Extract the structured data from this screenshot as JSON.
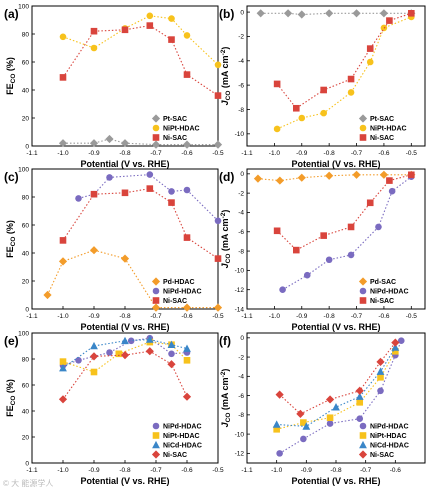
{
  "colors": {
    "gray": "#9a9a9a",
    "yellow": "#f7c21c",
    "red": "#d9443c",
    "orange": "#f39c2a",
    "purple": "#7a6bc0",
    "blue": "#3a86c8"
  },
  "watermark": "© 大 能源学人",
  "chart_data": [
    {
      "panel": "(a)",
      "type": "line",
      "xlabel": "Potential (V vs. RHE)",
      "ylabel": "FE_CO (%)",
      "xlim": [
        -1.1,
        -0.5
      ],
      "ylim": [
        0,
        100
      ],
      "xticks": [
        -1.1,
        -1.0,
        -0.9,
        -0.8,
        -0.7,
        -0.6,
        -0.5
      ],
      "yticks": [
        0,
        20,
        40,
        60,
        80,
        100
      ],
      "legend_position": "bottom-right",
      "series": [
        {
          "name": "Pt-SAC",
          "marker": "diamond",
          "color": "gray",
          "x": [
            -1.0,
            -0.9,
            -0.85,
            -0.8,
            -0.7,
            -0.6,
            -0.5
          ],
          "y": [
            2,
            2,
            5,
            2,
            1,
            1,
            1
          ]
        },
        {
          "name": "NiPt-HDAC",
          "marker": "circle",
          "color": "yellow",
          "x": [
            -1.0,
            -0.9,
            -0.8,
            -0.72,
            -0.65,
            -0.6,
            -0.5
          ],
          "y": [
            78,
            70,
            84,
            93,
            91,
            79,
            58
          ]
        },
        {
          "name": "Ni-SAC",
          "marker": "square",
          "color": "red",
          "x": [
            -1.0,
            -0.9,
            -0.8,
            -0.72,
            -0.65,
            -0.6,
            -0.5
          ],
          "y": [
            49,
            82,
            83,
            86,
            76,
            51,
            36
          ]
        }
      ]
    },
    {
      "panel": "(b)",
      "type": "line",
      "xlabel": "Potential (V vs. RHE)",
      "ylabel": "J_CO (mA cm^-2)",
      "xlim": [
        -1.1,
        -0.45
      ],
      "ylim": [
        -11,
        0.5
      ],
      "xticks": [
        -1.1,
        -1.0,
        -0.9,
        -0.8,
        -0.7,
        -0.6,
        -0.5
      ],
      "yticks": [
        0,
        -2,
        -4,
        -6,
        -8,
        -10
      ],
      "legend_position": "bottom-right",
      "series": [
        {
          "name": "Pt-SAC",
          "marker": "diamond",
          "color": "gray",
          "x": [
            -1.05,
            -0.95,
            -0.9,
            -0.8,
            -0.7,
            -0.6,
            -0.5
          ],
          "y": [
            -0.1,
            -0.1,
            -0.2,
            -0.1,
            -0.1,
            -0.1,
            -0.1
          ]
        },
        {
          "name": "NiPt-HDAC",
          "marker": "circle",
          "color": "yellow",
          "x": [
            -0.99,
            -0.9,
            -0.82,
            -0.72,
            -0.65,
            -0.6,
            -0.5
          ],
          "y": [
            -9.6,
            -8.7,
            -8.3,
            -6.6,
            -4.1,
            -1.3,
            -0.4
          ]
        },
        {
          "name": "Ni-SAC",
          "marker": "square",
          "color": "red",
          "x": [
            -0.99,
            -0.92,
            -0.82,
            -0.72,
            -0.65,
            -0.58,
            -0.5
          ],
          "y": [
            -5.9,
            -7.9,
            -6.4,
            -5.5,
            -3.0,
            -0.7,
            -0.1
          ]
        }
      ]
    },
    {
      "panel": "(c)",
      "type": "line",
      "xlabel": "Potential (V vs. RHE)",
      "ylabel": "FE_CO (%)",
      "xlim": [
        -1.1,
        -0.5
      ],
      "ylim": [
        0,
        100
      ],
      "xticks": [
        -1.1,
        -1.0,
        -0.9,
        -0.8,
        -0.7,
        -0.6,
        -0.5
      ],
      "yticks": [
        0,
        20,
        40,
        60,
        80,
        100
      ],
      "legend_position": "bottom-right",
      "series": [
        {
          "name": "Pd-HDAC",
          "marker": "diamond",
          "color": "orange",
          "x": [
            -1.05,
            -1.0,
            -0.9,
            -0.8,
            -0.7,
            -0.6,
            -0.5
          ],
          "y": [
            10,
            34,
            42,
            36,
            1,
            1,
            1
          ]
        },
        {
          "name": "NiPd-HDAC",
          "marker": "circle",
          "color": "purple",
          "x": [
            -0.95,
            -0.9,
            -0.85,
            -0.72,
            -0.65,
            -0.6,
            -0.5
          ],
          "y": [
            79,
            82,
            94,
            96,
            84,
            85,
            63
          ]
        },
        {
          "name": "Ni-SAC",
          "marker": "square",
          "color": "red",
          "x": [
            -1.0,
            -0.9,
            -0.8,
            -0.72,
            -0.65,
            -0.6,
            -0.5
          ],
          "y": [
            49,
            82,
            83,
            86,
            76,
            51,
            36
          ]
        }
      ]
    },
    {
      "panel": "(d)",
      "type": "line",
      "xlabel": "Potential (V vs. RHE)",
      "ylabel": "J_CO (mA cm^-2)",
      "xlim": [
        -1.1,
        -0.45
      ],
      "ylim": [
        -14,
        0.5
      ],
      "xticks": [
        -1.1,
        -1.0,
        -0.9,
        -0.8,
        -0.7,
        -0.6,
        -0.5
      ],
      "yticks": [
        0,
        -2,
        -4,
        -6,
        -8,
        -10,
        -12,
        -14
      ],
      "legend_position": "bottom-right",
      "series": [
        {
          "name": "Pd-SAC",
          "marker": "diamond",
          "color": "orange",
          "x": [
            -1.06,
            -0.98,
            -0.9,
            -0.8,
            -0.7,
            -0.6,
            -0.5
          ],
          "y": [
            -0.5,
            -0.7,
            -0.4,
            -0.2,
            -0.1,
            -0.1,
            -0.1
          ]
        },
        {
          "name": "NiPd-HDAC",
          "marker": "circle",
          "color": "purple",
          "x": [
            -0.97,
            -0.88,
            -0.8,
            -0.72,
            -0.62,
            -0.57,
            -0.5
          ],
          "y": [
            -12.0,
            -10.5,
            -8.9,
            -8.4,
            -5.5,
            -1.8,
            -0.3
          ]
        },
        {
          "name": "Ni-SAC",
          "marker": "square",
          "color": "red",
          "x": [
            -0.99,
            -0.92,
            -0.82,
            -0.72,
            -0.65,
            -0.58,
            -0.5
          ],
          "y": [
            -5.9,
            -7.9,
            -6.4,
            -5.5,
            -3.0,
            -0.7,
            -0.1
          ]
        }
      ]
    },
    {
      "panel": "(e)",
      "type": "line",
      "xlabel": "Potential (V vs. RHE)",
      "ylabel": "FE_CO (%)",
      "xlim": [
        -1.1,
        -0.5
      ],
      "ylim": [
        0,
        100
      ],
      "xticks": [
        -1.1,
        -1.0,
        -0.9,
        -0.8,
        -0.7,
        -0.6,
        -0.5
      ],
      "yticks": [
        0,
        20,
        40,
        60,
        80,
        100
      ],
      "legend_position": "bottom-right",
      "series": [
        {
          "name": "NiPd-HDAC",
          "marker": "circle",
          "color": "purple",
          "x": [
            -1.0,
            -0.95,
            -0.85,
            -0.78,
            -0.72,
            -0.65,
            -0.6
          ],
          "y": [
            75,
            79,
            85,
            94,
            96,
            84,
            85
          ]
        },
        {
          "name": "NiPt-HDAC",
          "marker": "square",
          "color": "yellow",
          "x": [
            -1.0,
            -0.9,
            -0.82,
            -0.72,
            -0.65,
            -0.6
          ],
          "y": [
            78,
            70,
            84,
            93,
            91,
            79
          ]
        },
        {
          "name": "NiCd-HDAC",
          "marker": "triangle",
          "color": "blue",
          "x": [
            -1.0,
            -0.9,
            -0.8,
            -0.72,
            -0.65,
            -0.6
          ],
          "y": [
            73,
            90,
            94,
            95,
            91,
            88
          ]
        },
        {
          "name": "Ni-SAC",
          "marker": "diamond",
          "color": "red",
          "x": [
            -1.0,
            -0.9,
            -0.8,
            -0.72,
            -0.65,
            -0.6
          ],
          "y": [
            49,
            82,
            83,
            86,
            76,
            51
          ]
        }
      ]
    },
    {
      "panel": "(f)",
      "type": "line",
      "xlabel": "Potential (V vs. RHE)",
      "ylabel": "J_CO (mA cm^-2)",
      "xlim": [
        -1.1,
        -0.5
      ],
      "ylim": [
        -13,
        0.5
      ],
      "xticks": [
        -1.1,
        -1.0,
        -0.9,
        -0.8,
        -0.7,
        -0.6
      ],
      "yticks": [
        0,
        -2,
        -4,
        -6,
        -8,
        -10,
        -12
      ],
      "legend_position": "bottom-right",
      "series": [
        {
          "name": "NiPd-HDAC",
          "marker": "circle",
          "color": "purple",
          "x": [
            -0.99,
            -0.91,
            -0.82,
            -0.72,
            -0.65,
            -0.6,
            -0.58
          ],
          "y": [
            -12.0,
            -10.5,
            -8.9,
            -8.4,
            -5.5,
            -1.8,
            -0.3
          ]
        },
        {
          "name": "NiPt-HDAC",
          "marker": "square",
          "color": "yellow",
          "x": [
            -1.0,
            -0.91,
            -0.82,
            -0.72,
            -0.65,
            -0.6
          ],
          "y": [
            -9.5,
            -8.8,
            -8.3,
            -6.7,
            -4.1,
            -1.4
          ]
        },
        {
          "name": "NiCd-HDAC",
          "marker": "triangle",
          "color": "blue",
          "x": [
            -1.0,
            -0.9,
            -0.8,
            -0.72,
            -0.65,
            -0.6
          ],
          "y": [
            -9.0,
            -9.2,
            -7.2,
            -6.1,
            -3.5,
            -1.0
          ]
        },
        {
          "name": "Ni-SAC",
          "marker": "diamond",
          "color": "red",
          "x": [
            -0.99,
            -0.92,
            -0.82,
            -0.72,
            -0.65,
            -0.6
          ],
          "y": [
            -5.9,
            -7.9,
            -6.4,
            -5.5,
            -2.5,
            -0.5
          ]
        }
      ]
    }
  ]
}
